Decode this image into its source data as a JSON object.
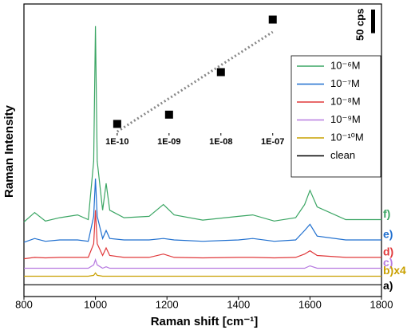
{
  "chart_data": [
    {
      "type": "line",
      "x_label": "Raman shift [cm⁻¹]",
      "y_label": "Raman Intensity",
      "xlim": [
        800,
        1800
      ],
      "xticks": [
        800,
        1000,
        1200,
        1400,
        1600,
        1800
      ],
      "ylim": [
        0,
        620
      ],
      "scale_bar": {
        "value": 50,
        "label": "50 cps"
      },
      "x": [
        800,
        830,
        860,
        900,
        950,
        980,
        995,
        1000,
        1005,
        1020,
        1030,
        1040,
        1080,
        1150,
        1190,
        1220,
        1300,
        1400,
        1440,
        1500,
        1560,
        1585,
        1600,
        1620,
        1700,
        1800
      ],
      "series": [
        {
          "name": "10⁻⁶M",
          "tag": "f)",
          "color": "#3aa563",
          "values": [
            158,
            178,
            160,
            167,
            173,
            163,
            287,
            573,
            287,
            183,
            240,
            183,
            167,
            170,
            195,
            173,
            162,
            170,
            173,
            160,
            167,
            195,
            225,
            190,
            163,
            163
          ]
        },
        {
          "name": "10⁻⁷M",
          "tag": "e)",
          "color": "#1f6fcf",
          "values": [
            115,
            123,
            117,
            120,
            120,
            117,
            170,
            250,
            170,
            123,
            140,
            123,
            120,
            120,
            123,
            120,
            117,
            120,
            123,
            117,
            120,
            140,
            153,
            128,
            120,
            120
          ]
        },
        {
          "name": "10⁻⁸M",
          "tag": "d)",
          "color": "#e0383a",
          "values": [
            80,
            83,
            82,
            83,
            83,
            83,
            112,
            183,
            112,
            87,
            103,
            87,
            83,
            83,
            90,
            83,
            82,
            83,
            83,
            82,
            83,
            90,
            97,
            87,
            83,
            83
          ]
        },
        {
          "name": "10⁻⁹M",
          "tag": "c)",
          "color": "#b77be0",
          "values": [
            60,
            60,
            60,
            60,
            60,
            60,
            67,
            78,
            67,
            60,
            63,
            60,
            60,
            60,
            60,
            60,
            60,
            60,
            60,
            60,
            60,
            60,
            65,
            60,
            60,
            60
          ]
        },
        {
          "name": "10⁻¹⁰M",
          "tag": "b)x4",
          "color": "#c9a000",
          "values": [
            43,
            43,
            43,
            43,
            43,
            43,
            45,
            50,
            45,
            43,
            43,
            43,
            43,
            43,
            43,
            43,
            43,
            43,
            43,
            43,
            43,
            43,
            43,
            43,
            43,
            43
          ]
        },
        {
          "name": "clean",
          "tag": "a)",
          "color": "#000000",
          "values": [
            25,
            25,
            25,
            25,
            25,
            25,
            25,
            25,
            25,
            25,
            25,
            25,
            25,
            25,
            25,
            25,
            25,
            25,
            25,
            25,
            25,
            25,
            25,
            25,
            25,
            25
          ]
        }
      ]
    },
    {
      "type": "scatter",
      "log_x": true,
      "xlim": [
        5.5e-11,
        1.6e-07
      ],
      "xticks": [
        {
          "value": 1e-10,
          "label": "1E-10"
        },
        {
          "value": 1e-09,
          "label": "1E-09"
        },
        {
          "value": 1e-08,
          "label": "1E-08"
        },
        {
          "value": 1e-07,
          "label": "1E-07"
        }
      ],
      "ylim": [
        0,
        165
      ],
      "x": [
        1e-10,
        1e-09,
        1e-08,
        1e-07
      ],
      "values": [
        15,
        27,
        82,
        150
      ],
      "color": "#000000",
      "fit": {
        "x": [
          1e-10,
          1e-07
        ],
        "values": [
          5,
          134
        ],
        "color": "#888888"
      }
    }
  ]
}
